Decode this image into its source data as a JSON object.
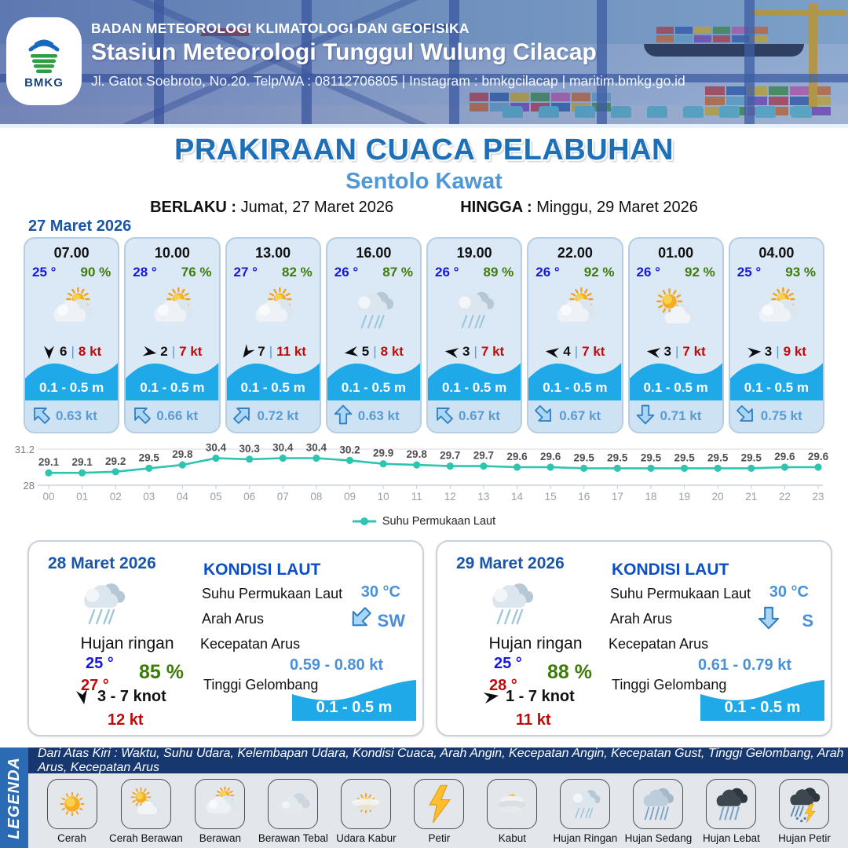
{
  "header": {
    "logo_text": "BMKG",
    "agency": "BADAN METEOROLOGI KLIMATOLOGI DAN GEOFISIKA",
    "station": "Stasiun Meteorologi Tunggul Wulung Cilacap",
    "address": "Jl. Gatot Soebroto, No.20. Telp/WA : 08112706805 | Instagram : bmkgcilacap | maritim.bmkg.go.id"
  },
  "title": {
    "main": "PRAKIRAAN CUACA PELABUHAN",
    "subtitle": "Sentolo Kawat"
  },
  "validity": {
    "berlaku_label": "BERLAKU :",
    "berlaku_value": "Jumat, 27 Maret 2026",
    "hingga_label": "HINGGA :",
    "hingga_value": "Minggu, 29 Maret 2026"
  },
  "labels": {
    "wind_separator": "|"
  },
  "day1": {
    "date": "27 Maret 2026",
    "hours": [
      {
        "time": "07.00",
        "temp": "25 °",
        "humidity": "90 %",
        "icon": "berawan",
        "wind_deg": 180,
        "wind_val": "6",
        "gust": "8 kt",
        "wave": "0.1 - 0.5 m",
        "current_deg": 315,
        "current": "0.63 kt"
      },
      {
        "time": "10.00",
        "temp": "28 °",
        "humidity": "76 %",
        "icon": "berawan",
        "wind_deg": 100,
        "wind_val": "2",
        "gust": "7 kt",
        "wave": "0.1 - 0.5 m",
        "current_deg": 315,
        "current": "0.66 kt"
      },
      {
        "time": "13.00",
        "temp": "27 °",
        "humidity": "82 %",
        "icon": "berawan",
        "wind_deg": 215,
        "wind_val": "7",
        "gust": "11 kt",
        "wave": "0.1 - 0.5 m",
        "current_deg": 45,
        "current": "0.72 kt"
      },
      {
        "time": "16.00",
        "temp": "26 °",
        "humidity": "87 %",
        "icon": "hujan-ringan",
        "wind_deg": 262,
        "wind_val": "5",
        "gust": "8 kt",
        "wave": "0.1 - 0.5 m",
        "current_deg": 0,
        "current": "0.63 kt"
      },
      {
        "time": "19.00",
        "temp": "26 °",
        "humidity": "89 %",
        "icon": "hujan-ringan",
        "wind_deg": 278,
        "wind_val": "3",
        "gust": "7 kt",
        "wave": "0.1 - 0.5 m",
        "current_deg": 315,
        "current": "0.67 kt"
      },
      {
        "time": "22.00",
        "temp": "26 °",
        "humidity": "92 %",
        "icon": "berawan",
        "wind_deg": 278,
        "wind_val": "4",
        "gust": "7 kt",
        "wave": "0.1 - 0.5 m",
        "current_deg": 135,
        "current": "0.67 kt"
      },
      {
        "time": "01.00",
        "temp": "26 °",
        "humidity": "92 %",
        "icon": "cerah-berawan",
        "wind_deg": 278,
        "wind_val": "3",
        "gust": "7 kt",
        "wave": "0.1 - 0.5 m",
        "current_deg": 180,
        "current": "0.71 kt"
      },
      {
        "time": "04.00",
        "temp": "25 °",
        "humidity": "93 %",
        "icon": "berawan",
        "wind_deg": 85,
        "wind_val": "3",
        "gust": "9 kt",
        "wave": "0.1 - 0.5 m",
        "current_deg": 135,
        "current": "0.75 kt"
      }
    ]
  },
  "chart_data": {
    "type": "line",
    "series_label": "Suhu Permukaan Laut",
    "x": [
      "00",
      "01",
      "02",
      "03",
      "04",
      "05",
      "06",
      "07",
      "08",
      "09",
      "10",
      "11",
      "12",
      "13",
      "14",
      "15",
      "16",
      "17",
      "18",
      "19",
      "20",
      "21",
      "22",
      "23"
    ],
    "values": [
      29.1,
      29.1,
      29.2,
      29.5,
      29.8,
      30.4,
      30.3,
      30.4,
      30.4,
      30.2,
      29.9,
      29.8,
      29.7,
      29.7,
      29.6,
      29.6,
      29.5,
      29.5,
      29.5,
      29.5,
      29.5,
      29.5,
      29.6,
      29.6
    ],
    "ylim": [
      28,
      31.2
    ],
    "ytick_labels": [
      "31.2",
      "28"
    ],
    "grid": "horizontal-top-bottom",
    "legend_position": "bottom-center",
    "line_color": "#2ec5b0"
  },
  "days": [
    {
      "date": "28 Maret 2026",
      "icon": "hujan-ringan",
      "condition": "Hujan ringan",
      "temp_min": "25 °",
      "temp_max": "27 °",
      "humidity": "85 %",
      "wind_deg": 170,
      "wind_range": "3  - 7 knot",
      "gust": "12 kt",
      "sea": {
        "title": "KONDISI LAUT",
        "sst_label": "Suhu Permukaan Laut",
        "sst": "30 °C",
        "arah_label": "Arah Arus",
        "arah": "SW",
        "arah_deg": 225,
        "kecepatan_label": "Kecepatan Arus",
        "kecepatan": "0.59 -  0.80 kt",
        "gelombang_label": "Tinggi Gelombang",
        "gelombang": "0.1 - 0.5 m"
      }
    },
    {
      "date": "29 Maret 2026",
      "icon": "hujan-ringan",
      "condition": "Hujan ringan",
      "temp_min": "25 °",
      "temp_max": "28 °",
      "humidity": "88 %",
      "wind_deg": 80,
      "wind_range": "1  - 7 knot",
      "gust": "11 kt",
      "sea": {
        "title": "KONDISI LAUT",
        "sst_label": "Suhu Permukaan Laut",
        "sst": "30 °C",
        "arah_label": "Arah Arus",
        "arah": "S",
        "arah_deg": 180,
        "kecepatan_label": "Kecepatan Arus",
        "kecepatan": "0.61 - 0.79 kt",
        "gelombang_label": "Tinggi Gelombang",
        "gelombang": "0.1 - 0.5 m"
      }
    }
  ],
  "legend": {
    "title": "LEGENDA",
    "note": "Dari Atas Kiri : Waktu, Suhu Udara, Kelembapan Udara, Kondisi Cuaca, Arah Angin, Kecepatan Angin, Kecepatan Gust, Tinggi Gelombang, Arah Arus, Kecepatan Arus",
    "items": [
      {
        "label": "Cerah",
        "icon": "cerah"
      },
      {
        "label": "Cerah Berawan",
        "icon": "cerah-berawan"
      },
      {
        "label": "Berawan",
        "icon": "berawan"
      },
      {
        "label": "Berawan Tebal",
        "icon": "berawan-tebal"
      },
      {
        "label": "Udara Kabur",
        "icon": "udara-kabur"
      },
      {
        "label": "Petir",
        "icon": "petir"
      },
      {
        "label": "Kabut",
        "icon": "kabut"
      },
      {
        "label": "Hujan Ringan",
        "icon": "hujan-ringan"
      },
      {
        "label": "Hujan Sedang",
        "icon": "hujan-sedang"
      },
      {
        "label": "Hujan Lebat",
        "icon": "hujan-lebat"
      },
      {
        "label": "Hujan Petir",
        "icon": "hujan-petir"
      }
    ]
  },
  "colors": {
    "accent_blue": "#1d6fb8",
    "subtitle_blue": "#4e97d9",
    "date_blue": "#1a55a8",
    "temp_blue": "#1616dd",
    "humidity_green": "#3e7c0a",
    "alert_red": "#c00a0a",
    "wave_blue": "#1fa9e8",
    "current_blue": "#5b9bd5",
    "chart_teal": "#2ec5b0",
    "legend_band_blue": "#2a6bb4",
    "legend_note_navy": "#17386e"
  }
}
